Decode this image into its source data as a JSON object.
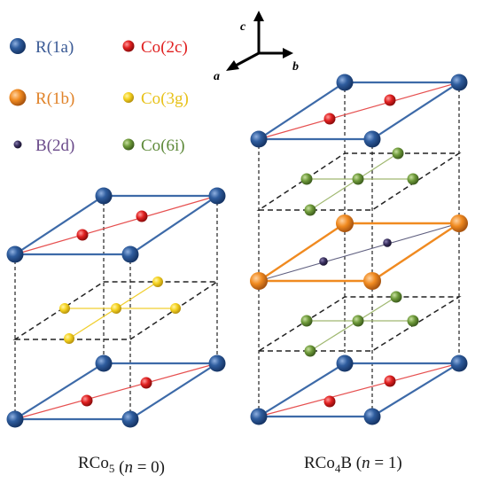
{
  "legend": [
    {
      "symbol": "R",
      "site": "(1a)",
      "color": "#2f5d9e",
      "text_color": "#3a5a95",
      "size": "large"
    },
    {
      "symbol": "Co",
      "site": "(2c)",
      "color": "#e02020",
      "text_color": "#e02020",
      "size": "small"
    },
    {
      "symbol": "R",
      "site": "(1b)",
      "color": "#f08a20",
      "text_color": "#e08228",
      "size": "large"
    },
    {
      "symbol": "Co",
      "site": "(3g)",
      "color": "#f5d21e",
      "text_color": "#e8c21a",
      "size": "small"
    },
    {
      "symbol": "B",
      "site": "(2d)",
      "color": "#3a3060",
      "text_color": "#6a4a8a",
      "size": "tiny"
    },
    {
      "symbol": "Co",
      "site": "(6i)",
      "color": "#6e9a3a",
      "text_color": "#5e8a3a",
      "size": "small"
    }
  ],
  "axes": {
    "c": "c",
    "a": "a",
    "b": "b"
  },
  "structures": [
    {
      "formula_prefix": "RCo",
      "formula_subscript": "5",
      "formula_suffix": "",
      "n_label": "n",
      "n_value": " = 0)",
      "open_paren": "("
    },
    {
      "formula_prefix": "RCo",
      "formula_subscript": "4",
      "formula_suffix": "B",
      "n_label": "n",
      "n_value": " = 1)",
      "open_paren": "("
    }
  ],
  "colors": {
    "frame_blue": "#3d6aa8",
    "frame_orange": "#f08a20",
    "co2c_line": "#e65050",
    "co3g_line": "#f0cf30",
    "co6i_line": "#a0b870",
    "b_line": "#606080",
    "dashed": "#222222"
  }
}
